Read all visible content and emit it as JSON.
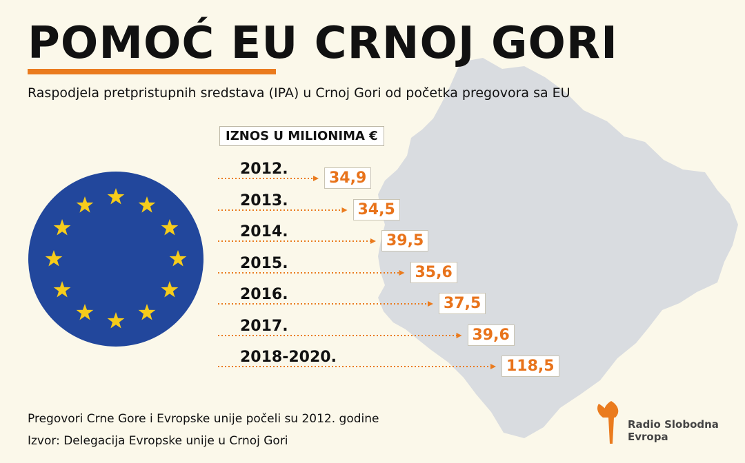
{
  "header": {
    "title": "POMOĆ EU CRNOJ GORI",
    "subtitle": "Raspodjela pretpristupnih sredstava (IPA) u Crnoj Gori od početka pregovora sa EU"
  },
  "chart_data": {
    "type": "table",
    "unit_label": "IZNOS U MILIONIMA €",
    "categories": [
      "2012.",
      "2013.",
      "2014.",
      "2015.",
      "2016.",
      "2017.",
      "2018-2020."
    ],
    "values": [
      "34,9",
      "34,5",
      "39,5",
      "35,6",
      "37,5",
      "39,6",
      "118,5"
    ],
    "accent_color": "#e8731b"
  },
  "footer": {
    "note": "Pregovori Crne Gore i Evropske unije počeli su 2012. godine",
    "source": "Izvor: Delegacija Evropske unije u Crnoj Gori"
  },
  "logo": {
    "line1": "Radio Slobodna",
    "line2": "Evropa",
    "icon": "torch-icon"
  },
  "colors": {
    "background": "#fbf8ea",
    "map": "#d9dce0",
    "flag_blue": "#22479c",
    "flag_star": "#f6cc1b",
    "accent": "#ea7b1e"
  }
}
